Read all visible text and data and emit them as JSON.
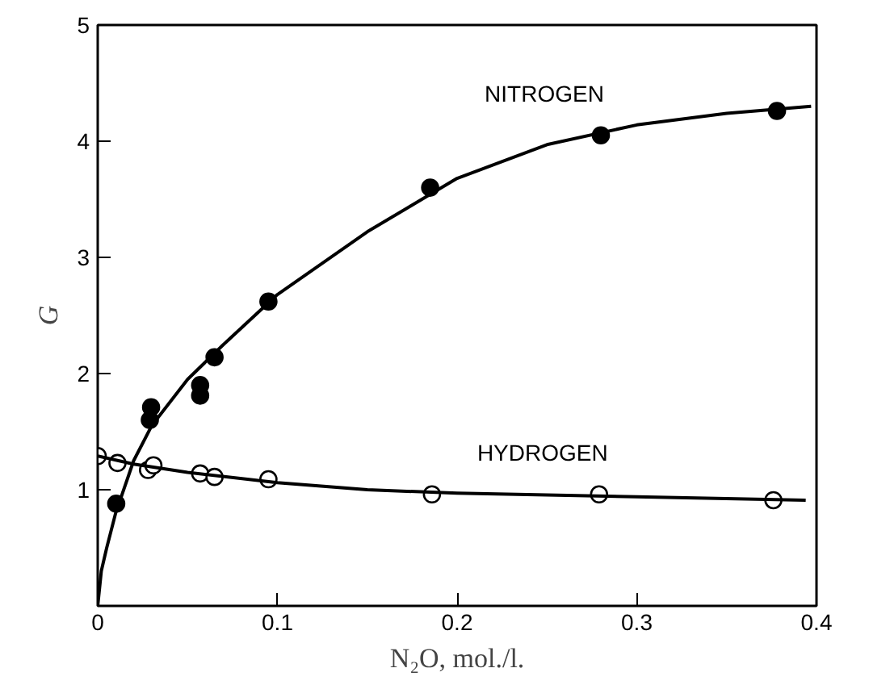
{
  "chart_data": {
    "type": "scatter",
    "xlabel": "N₂O, mol./l.",
    "ylabel": "G",
    "xlim": [
      0,
      0.4
    ],
    "ylim": [
      0,
      5
    ],
    "xticks": [
      0,
      0.1,
      0.2,
      0.3,
      0.4
    ],
    "yticks": [
      {
        "value": 0,
        "label": null
      },
      1,
      2,
      3,
      4,
      5
    ],
    "grid": false,
    "series": [
      {
        "name": "NITROGEN",
        "color": "#000000",
        "marker": "circle",
        "x": [
          0.0103,
          0.0297,
          0.029,
          0.057,
          0.057,
          0.065,
          0.095,
          0.185,
          0.28,
          0.378
        ],
        "values": [
          0.88,
          1.71,
          1.6,
          1.9,
          1.81,
          2.14,
          2.62,
          3.6,
          4.05,
          4.26
        ]
      },
      {
        "name": "HYDROGEN",
        "color": "#ffffff",
        "marker": "circle",
        "x": [
          0.0,
          0.011,
          0.028,
          0.031,
          0.057,
          0.065,
          0.095,
          0.186,
          0.279,
          0.376
        ],
        "values": [
          1.29,
          1.23,
          1.17,
          1.21,
          1.14,
          1.11,
          1.09,
          0.96,
          0.96,
          0.91
        ]
      },
      {
        "type": "line",
        "marker": "none",
        "color": "#000000",
        "x": [
          0,
          0.002,
          0.005,
          0.01,
          0.02,
          0.03,
          0.05,
          0.07,
          0.1,
          0.15,
          0.2,
          0.25,
          0.3,
          0.35,
          0.397
        ],
        "values": [
          0,
          0.3,
          0.5,
          0.8,
          1.25,
          1.55,
          1.95,
          2.25,
          2.68,
          3.22,
          3.68,
          3.97,
          4.14,
          4.24,
          4.3
        ]
      },
      {
        "type": "line",
        "marker": "none",
        "color": "#000000",
        "x": [
          0,
          0.02,
          0.05,
          0.1,
          0.15,
          0.2,
          0.3,
          0.394
        ],
        "values": [
          1.29,
          1.22,
          1.15,
          1.06,
          1.0,
          0.97,
          0.94,
          0.91
        ]
      }
    ]
  }
}
